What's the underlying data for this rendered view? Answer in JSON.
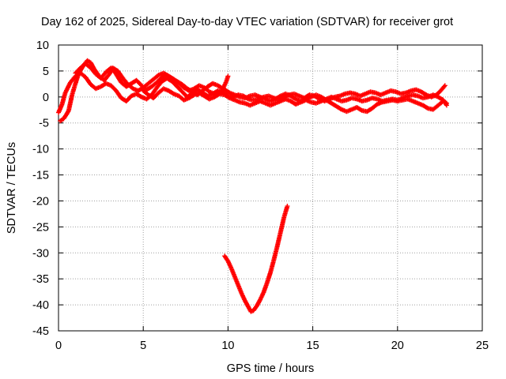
{
  "chart_data": {
    "type": "scatter",
    "title": "Day 162 of 2025, Sidereal Day-to-day VTEC variation (SDTVAR) for receiver grot",
    "xlabel": "GPS time / hours",
    "ylabel": "SDTVAR / TECUs",
    "xlim": [
      0,
      25
    ],
    "ylim": [
      -45,
      10
    ],
    "xticks": [
      0,
      5,
      10,
      15,
      20,
      25
    ],
    "yticks": [
      10,
      5,
      0,
      -5,
      -10,
      -15,
      -20,
      -25,
      -30,
      -35,
      -40,
      -45
    ],
    "grid": true,
    "legend": "none",
    "marker": "+",
    "color": "#ff0000",
    "series": [
      {
        "name": "trace-a",
        "points": [
          [
            0.0,
            -3.0
          ],
          [
            0.2,
            -1.5
          ],
          [
            0.4,
            0.8
          ],
          [
            0.7,
            2.8
          ],
          [
            1.0,
            4.0
          ],
          [
            1.3,
            4.6
          ],
          [
            1.6,
            3.8
          ],
          [
            1.9,
            2.4
          ],
          [
            2.2,
            1.6
          ],
          [
            2.5,
            2.0
          ],
          [
            2.8,
            2.6
          ],
          [
            3.1,
            2.2
          ],
          [
            3.4,
            1.2
          ],
          [
            3.7,
            -0.2
          ],
          [
            4.0,
            -0.8
          ],
          [
            4.3,
            0.2
          ],
          [
            4.6,
            0.6
          ],
          [
            4.9,
            0.0
          ],
          [
            5.2,
            -0.4
          ],
          [
            5.5,
            0.4
          ],
          [
            5.8,
            1.8
          ],
          [
            6.1,
            3.0
          ],
          [
            6.4,
            3.6
          ],
          [
            6.7,
            3.0
          ],
          [
            7.0,
            2.0
          ],
          [
            7.3,
            1.0
          ],
          [
            7.6,
            0.0
          ],
          [
            7.9,
            0.8
          ],
          [
            8.2,
            1.4
          ],
          [
            8.5,
            0.8
          ],
          [
            8.8,
            0.2
          ],
          [
            9.1,
            0.6
          ],
          [
            9.4,
            1.2
          ],
          [
            9.7,
            0.8
          ],
          [
            10.0,
            0.2
          ],
          [
            10.3,
            0.0
          ],
          [
            10.6,
            0.4
          ],
          [
            10.9,
            0.2
          ],
          [
            11.2,
            -0.4
          ],
          [
            11.5,
            -0.6
          ],
          [
            11.8,
            -0.4
          ],
          [
            12.1,
            0.0
          ],
          [
            12.4,
            0.2
          ],
          [
            12.7,
            -0.2
          ],
          [
            13.0,
            -0.4
          ],
          [
            13.3,
            0.0
          ],
          [
            13.6,
            0.4
          ],
          [
            13.9,
            0.6
          ],
          [
            14.2,
            0.2
          ],
          [
            14.5,
            -0.2
          ],
          [
            14.8,
            0.4
          ],
          [
            15.1,
            0.2
          ],
          [
            15.4,
            -0.4
          ],
          [
            15.7,
            -0.8
          ],
          [
            16.0,
            -0.4
          ],
          [
            16.3,
            0.0
          ],
          [
            16.6,
            0.2
          ],
          [
            16.9,
            0.6
          ],
          [
            17.2,
            0.8
          ],
          [
            17.5,
            0.6
          ],
          [
            17.8,
            0.2
          ],
          [
            18.1,
            0.6
          ],
          [
            18.4,
            1.0
          ],
          [
            18.7,
            0.8
          ],
          [
            19.0,
            0.4
          ],
          [
            19.3,
            0.8
          ],
          [
            19.6,
            1.2
          ],
          [
            19.9,
            1.0
          ],
          [
            20.2,
            0.6
          ],
          [
            20.5,
            0.8
          ],
          [
            20.8,
            1.2
          ],
          [
            21.1,
            1.4
          ],
          [
            21.4,
            1.0
          ],
          [
            21.7,
            0.4
          ],
          [
            22.0,
            0.0
          ],
          [
            22.3,
            0.4
          ],
          [
            22.6,
            1.4
          ],
          [
            22.8,
            2.2
          ]
        ]
      },
      {
        "name": "trace-b",
        "points": [
          [
            0.1,
            -4.6
          ],
          [
            0.3,
            -4.2
          ],
          [
            0.5,
            -3.2
          ],
          [
            0.6,
            -2.6
          ],
          [
            0.8,
            0.4
          ],
          [
            1.0,
            2.6
          ],
          [
            1.2,
            4.6
          ],
          [
            1.5,
            6.2
          ],
          [
            1.7,
            7.0
          ],
          [
            1.9,
            6.6
          ],
          [
            2.1,
            5.4
          ],
          [
            2.4,
            4.0
          ],
          [
            2.7,
            3.2
          ],
          [
            3.0,
            4.4
          ],
          [
            3.2,
            5.6
          ],
          [
            3.5,
            5.0
          ],
          [
            3.8,
            3.6
          ],
          [
            4.1,
            2.4
          ],
          [
            4.4,
            1.6
          ],
          [
            4.7,
            1.2
          ],
          [
            5.0,
            1.8
          ],
          [
            5.3,
            2.6
          ],
          [
            5.6,
            3.4
          ],
          [
            5.9,
            4.2
          ],
          [
            6.2,
            4.6
          ],
          [
            6.5,
            4.0
          ],
          [
            6.8,
            3.4
          ],
          [
            7.1,
            2.6
          ],
          [
            7.4,
            1.8
          ],
          [
            7.7,
            1.2
          ],
          [
            8.0,
            1.6
          ],
          [
            8.3,
            2.2
          ],
          [
            8.6,
            1.8
          ],
          [
            8.9,
            1.0
          ],
          [
            9.2,
            0.6
          ],
          [
            9.5,
            1.0
          ],
          [
            9.8,
            1.4
          ],
          [
            10.1,
            0.8
          ],
          [
            10.4,
            0.4
          ],
          [
            10.7,
            0.0
          ],
          [
            11.0,
            -0.2
          ],
          [
            11.3,
            0.2
          ],
          [
            11.6,
            0.4
          ],
          [
            11.9,
            0.0
          ],
          [
            12.2,
            -0.4
          ],
          [
            12.5,
            -0.8
          ],
          [
            12.8,
            -0.4
          ],
          [
            13.1,
            0.2
          ],
          [
            13.4,
            0.6
          ],
          [
            13.7,
            0.2
          ],
          [
            14.0,
            -0.4
          ],
          [
            14.3,
            -0.8
          ],
          [
            14.6,
            -0.4
          ],
          [
            14.9,
            0.0
          ],
          [
            15.2,
            0.4
          ],
          [
            15.5,
            0.0
          ],
          [
            15.8,
            -0.6
          ],
          [
            16.1,
            -1.2
          ],
          [
            16.4,
            -1.8
          ],
          [
            16.7,
            -2.4
          ],
          [
            17.0,
            -2.8
          ],
          [
            17.3,
            -2.4
          ],
          [
            17.6,
            -2.0
          ],
          [
            17.9,
            -2.6
          ],
          [
            18.2,
            -2.8
          ],
          [
            18.5,
            -2.2
          ],
          [
            18.8,
            -1.4
          ],
          [
            19.1,
            -1.0
          ],
          [
            19.4,
            -0.8
          ],
          [
            19.7,
            -0.6
          ],
          [
            20.0,
            -0.8
          ],
          [
            20.3,
            -0.6
          ],
          [
            20.6,
            -0.4
          ],
          [
            20.9,
            -0.8
          ],
          [
            21.2,
            -1.2
          ],
          [
            21.5,
            -1.6
          ],
          [
            21.8,
            -2.2
          ],
          [
            22.1,
            -2.4
          ],
          [
            22.4,
            -1.6
          ],
          [
            22.7,
            -0.8
          ],
          [
            22.9,
            -1.2
          ]
        ]
      },
      {
        "name": "trace-c",
        "points": [
          [
            1.0,
            4.6
          ],
          [
            1.3,
            5.6
          ],
          [
            1.6,
            6.4
          ],
          [
            1.9,
            5.6
          ],
          [
            2.2,
            4.4
          ],
          [
            2.5,
            3.6
          ],
          [
            2.8,
            4.8
          ],
          [
            3.1,
            5.6
          ],
          [
            3.4,
            4.4
          ],
          [
            3.7,
            2.8
          ],
          [
            4.0,
            2.0
          ],
          [
            4.3,
            2.6
          ],
          [
            4.6,
            3.2
          ],
          [
            4.9,
            2.2
          ],
          [
            5.2,
            1.4
          ],
          [
            5.5,
            2.0
          ],
          [
            5.8,
            2.8
          ],
          [
            6.1,
            3.8
          ],
          [
            6.4,
            4.2
          ],
          [
            6.7,
            3.6
          ],
          [
            7.0,
            3.0
          ],
          [
            7.3,
            2.4
          ],
          [
            7.6,
            1.6
          ],
          [
            7.9,
            1.0
          ],
          [
            8.2,
            0.4
          ],
          [
            8.5,
            1.2
          ],
          [
            8.8,
            2.0
          ],
          [
            9.1,
            2.6
          ],
          [
            9.4,
            2.2
          ],
          [
            9.7,
            1.6
          ],
          [
            9.9,
            3.0
          ],
          [
            10.0,
            4.0
          ]
        ]
      },
      {
        "name": "trace-d",
        "points": [
          [
            5.0,
            1.2
          ],
          [
            5.3,
            0.4
          ],
          [
            5.6,
            -0.2
          ],
          [
            5.9,
            0.8
          ],
          [
            6.2,
            1.6
          ],
          [
            6.5,
            1.2
          ],
          [
            6.8,
            0.6
          ],
          [
            7.1,
            0.2
          ],
          [
            7.4,
            -0.6
          ],
          [
            7.7,
            -0.2
          ],
          [
            8.0,
            0.4
          ],
          [
            8.3,
            0.8
          ],
          [
            8.6,
            0.2
          ],
          [
            8.9,
            -0.4
          ],
          [
            9.2,
            0.0
          ],
          [
            9.5,
            0.6
          ],
          [
            9.8,
            0.4
          ],
          [
            10.1,
            -0.2
          ],
          [
            10.4,
            -0.6
          ],
          [
            10.7,
            -1.0
          ],
          [
            11.0,
            -1.2
          ],
          [
            11.3,
            -1.6
          ],
          [
            11.6,
            -1.2
          ],
          [
            11.9,
            -0.8
          ],
          [
            12.2,
            -1.2
          ],
          [
            12.5,
            -1.6
          ],
          [
            12.8,
            -1.2
          ],
          [
            13.1,
            -0.8
          ],
          [
            13.4,
            -0.4
          ],
          [
            13.7,
            -0.8
          ],
          [
            14.0,
            -1.4
          ],
          [
            14.3,
            -1.0
          ],
          [
            14.6,
            -0.6
          ],
          [
            14.9,
            -1.0
          ],
          [
            15.2,
            -1.2
          ],
          [
            15.5,
            -0.8
          ],
          [
            15.8,
            -0.4
          ],
          [
            16.1,
            0.0
          ],
          [
            16.4,
            -0.4
          ],
          [
            16.7,
            -0.8
          ],
          [
            17.0,
            -0.6
          ],
          [
            17.3,
            -0.2
          ],
          [
            17.6,
            -0.4
          ],
          [
            17.9,
            -0.8
          ],
          [
            18.2,
            -0.6
          ],
          [
            18.5,
            -0.2
          ],
          [
            18.8,
            -0.4
          ],
          [
            19.1,
            -0.8
          ],
          [
            19.4,
            -0.6
          ],
          [
            19.7,
            -0.4
          ],
          [
            20.0,
            -0.6
          ],
          [
            20.3,
            -0.2
          ],
          [
            20.6,
            0.2
          ],
          [
            20.9,
            0.4
          ],
          [
            21.2,
            0.2
          ],
          [
            21.5,
            -0.2
          ],
          [
            21.8,
            0.0
          ],
          [
            22.1,
            0.4
          ],
          [
            22.4,
            0.0
          ],
          [
            22.7,
            -0.6
          ],
          [
            22.9,
            -1.6
          ]
        ]
      },
      {
        "name": "trace-e",
        "points": [
          [
            9.8,
            -30.6
          ],
          [
            10.0,
            -31.6
          ],
          [
            10.2,
            -33.0
          ],
          [
            10.4,
            -34.6
          ],
          [
            10.6,
            -36.2
          ],
          [
            10.8,
            -37.8
          ],
          [
            11.0,
            -39.2
          ],
          [
            11.2,
            -40.4
          ],
          [
            11.35,
            -41.3
          ],
          [
            11.5,
            -41.1
          ],
          [
            11.7,
            -40.2
          ],
          [
            11.9,
            -39.0
          ],
          [
            12.1,
            -37.6
          ],
          [
            12.3,
            -35.8
          ],
          [
            12.5,
            -33.8
          ],
          [
            12.7,
            -31.4
          ],
          [
            12.9,
            -28.8
          ],
          [
            13.1,
            -26.0
          ],
          [
            13.3,
            -23.2
          ],
          [
            13.5,
            -21.0
          ]
        ]
      }
    ]
  }
}
